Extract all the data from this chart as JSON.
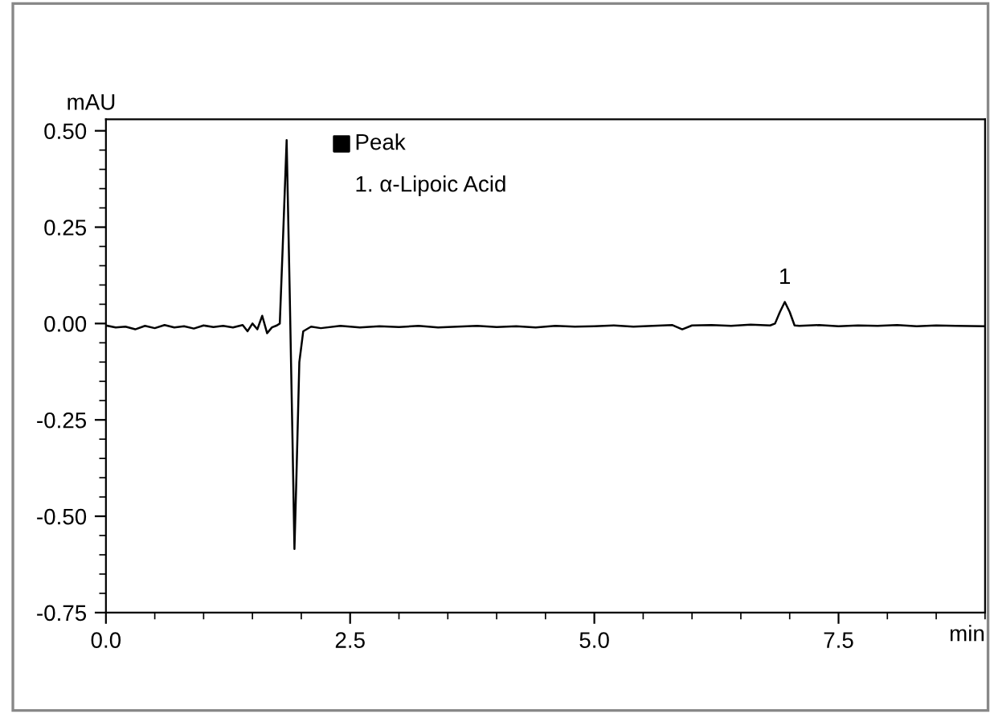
{
  "chart_data": {
    "type": "line",
    "legend_title": "Peak",
    "xlabel": "min",
    "ylabel": "mAU",
    "annotations": [
      "1. α-Lipoic Acid",
      {
        "text": "1",
        "x": 6.95,
        "y": 0.056
      }
    ],
    "xlim": [
      0,
      9.0
    ],
    "xticks": [
      {
        "value": 0,
        "label": "0.0"
      },
      2.5,
      {
        "value": 5,
        "label": "5.0"
      },
      7.5
    ],
    "ylim": [
      -0.75,
      0.53
    ],
    "yticks": [
      {
        "value": -0.75,
        "label": "-0.75"
      },
      {
        "value": -0.5,
        "label": "-0.50"
      },
      {
        "value": -0.25,
        "label": "-0.25"
      },
      {
        "value": 0,
        "label": "0.00"
      },
      {
        "value": 0.25,
        "label": "0.25"
      },
      {
        "value": 0.5,
        "label": "0.50"
      }
    ],
    "grid": false,
    "marker": "none",
    "line_style": "solid",
    "series": [
      {
        "color": "#000000",
        "x": [
          0,
          0.1,
          0.2,
          0.3,
          0.4,
          0.5,
          0.6,
          0.7,
          0.8,
          0.9,
          1.0,
          1.1,
          1.2,
          1.3,
          1.4,
          1.45,
          1.5,
          1.55,
          1.6,
          1.65,
          1.7,
          1.75,
          1.78,
          1.81,
          1.85,
          1.88,
          1.91,
          1.93,
          1.95,
          1.98,
          2.02,
          2.1,
          2.2,
          2.4,
          2.6,
          2.8,
          3.0,
          3.2,
          3.4,
          3.6,
          3.8,
          4.0,
          4.2,
          4.4,
          4.6,
          4.8,
          5.0,
          5.2,
          5.4,
          5.6,
          5.8,
          5.9,
          6.0,
          6.2,
          6.4,
          6.6,
          6.8,
          6.85,
          6.9,
          6.95,
          7.0,
          7.05,
          7.1,
          7.3,
          7.5,
          7.7,
          7.9,
          8.1,
          8.3,
          8.5,
          8.7,
          9.0
        ],
        "values": [
          -0.005,
          -0.01,
          -0.008,
          -0.015,
          -0.006,
          -0.012,
          -0.004,
          -0.01,
          -0.007,
          -0.013,
          -0.005,
          -0.009,
          -0.006,
          -0.01,
          -0.004,
          -0.02,
          0.0,
          -0.015,
          0.02,
          -0.025,
          -0.01,
          -0.005,
          0.0,
          0.2,
          0.476,
          0.1,
          -0.3,
          -0.585,
          -0.4,
          -0.1,
          -0.02,
          -0.008,
          -0.012,
          -0.006,
          -0.01,
          -0.007,
          -0.009,
          -0.006,
          -0.01,
          -0.008,
          -0.006,
          -0.009,
          -0.007,
          -0.01,
          -0.006,
          -0.008,
          -0.007,
          -0.005,
          -0.008,
          -0.006,
          -0.004,
          -0.015,
          -0.005,
          -0.004,
          -0.006,
          -0.003,
          -0.005,
          0.0,
          0.03,
          0.056,
          0.03,
          -0.005,
          -0.006,
          -0.004,
          -0.007,
          -0.005,
          -0.006,
          -0.004,
          -0.007,
          -0.005,
          -0.006,
          -0.007
        ]
      }
    ]
  }
}
